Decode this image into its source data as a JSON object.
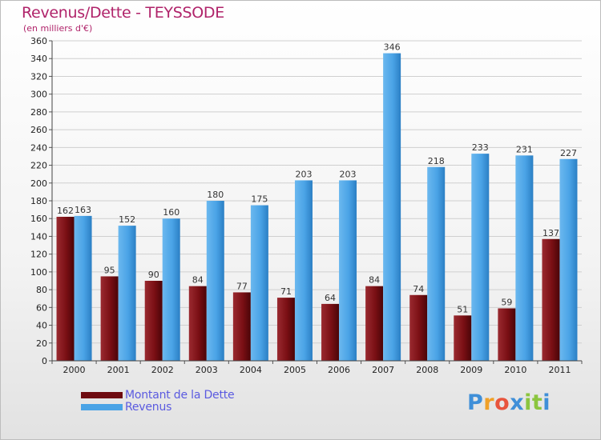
{
  "chart_data": {
    "type": "bar",
    "title": "Revenus/Dette - TEYSSODE",
    "subtitle": "(en milliers d'€)",
    "xlabel": "",
    "ylabel": "",
    "categories": [
      "2000",
      "2001",
      "2002",
      "2003",
      "2004",
      "2005",
      "2006",
      "2007",
      "2008",
      "2009",
      "2010",
      "2011"
    ],
    "series": [
      {
        "name": "Montant de la Dette",
        "color": "#7a0f14",
        "values": [
          162,
          95,
          90,
          84,
          77,
          71,
          64,
          84,
          74,
          51,
          59,
          137
        ]
      },
      {
        "name": "Revenus",
        "color": "#4aa3e6",
        "values": [
          163,
          152,
          160,
          180,
          175,
          203,
          203,
          346,
          218,
          233,
          231,
          227
        ]
      }
    ],
    "ylim": [
      0,
      360
    ],
    "ytick_step": 20,
    "grid": true,
    "legend_position": "bottom-left"
  },
  "brand": {
    "letters": [
      "P",
      "r",
      "o",
      "x",
      "i",
      "t",
      "i"
    ],
    "colors": [
      "#3f8fd8",
      "#f0a028",
      "#e8543c",
      "#3f8fd8",
      "#8bc53f",
      "#8bc53f",
      "#3f8fd8"
    ]
  }
}
